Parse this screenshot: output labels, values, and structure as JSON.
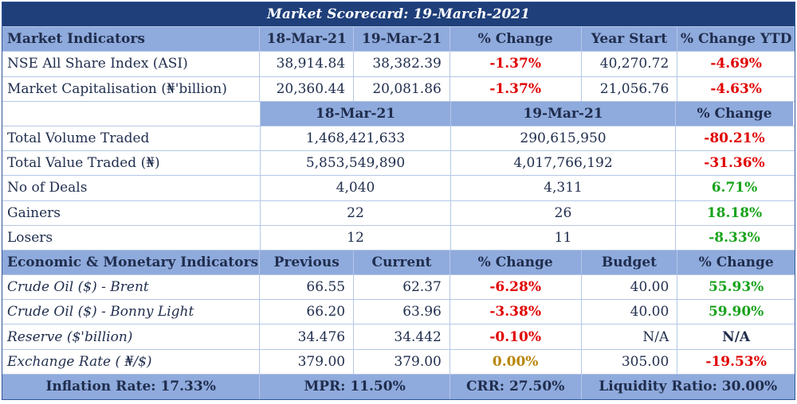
{
  "title": "Market Scorecard: 19-March-2021",
  "market": {
    "headers": [
      "Market Indicators",
      "18-Mar-21",
      "19-Mar-21",
      "% Change",
      "Year Start",
      "% Change YTD"
    ],
    "rows": [
      [
        "NSE All Share Index (ASI)",
        "38,914.84",
        "38,382.39",
        "-1.37%",
        "40,270.72",
        "-4.69%"
      ],
      [
        "Market Capitalisation (₦'billion)",
        "20,360.44",
        "20,081.86",
        "-1.37%",
        "21,056.76",
        "-4.63%"
      ]
    ]
  },
  "activity": {
    "headers": [
      "",
      "18-Mar-21",
      "19-Mar-21",
      "% Change"
    ],
    "rows": [
      [
        "Total Volume Traded",
        "1,468,421,633",
        "290,615,950",
        "-80.21%"
      ],
      [
        "Total Value Traded (₦)",
        "5,853,549,890",
        "4,017,766,192",
        "-31.36%"
      ],
      [
        "No of Deals",
        "4,040",
        "4,311",
        "6.71%"
      ],
      [
        "Gainers",
        "22",
        "26",
        "18.18%"
      ],
      [
        "Losers",
        "12",
        "11",
        "-8.33%"
      ]
    ]
  },
  "economic": {
    "headers": [
      "Economic & Monetary Indicators",
      "Previous",
      "Current",
      "% Change",
      "Budget",
      "% Change"
    ],
    "rows": [
      [
        "Crude Oil ($) - Brent",
        "66.55",
        "62.37",
        "-6.28%",
        "40.00",
        "55.93%"
      ],
      [
        "Crude Oil ($) - Bonny Light",
        "66.20",
        "63.96",
        "-3.38%",
        "40.00",
        "59.90%"
      ],
      [
        "Reserve ($'billion)",
        "34.476",
        "34.442",
        "-0.10%",
        "N/A",
        "N/A"
      ],
      [
        "Exchange Rate ( ₦/$)",
        "379.00",
        "379.00",
        "0.00%",
        "305.00",
        "-19.53%"
      ]
    ]
  },
  "footer": {
    "inflation": "Inflation Rate: 17.33%",
    "mpr": "MPR: 11.50%",
    "crr": "CRR: 27.50%",
    "liquidity": "Liquidity Ratio: 30.00%"
  },
  "colors": {
    "title_bg": "#1f3f7a",
    "header_bg": "#8faadc",
    "negative": "#e00000",
    "positive": "#18a31c",
    "neutral": "#b8860b"
  }
}
